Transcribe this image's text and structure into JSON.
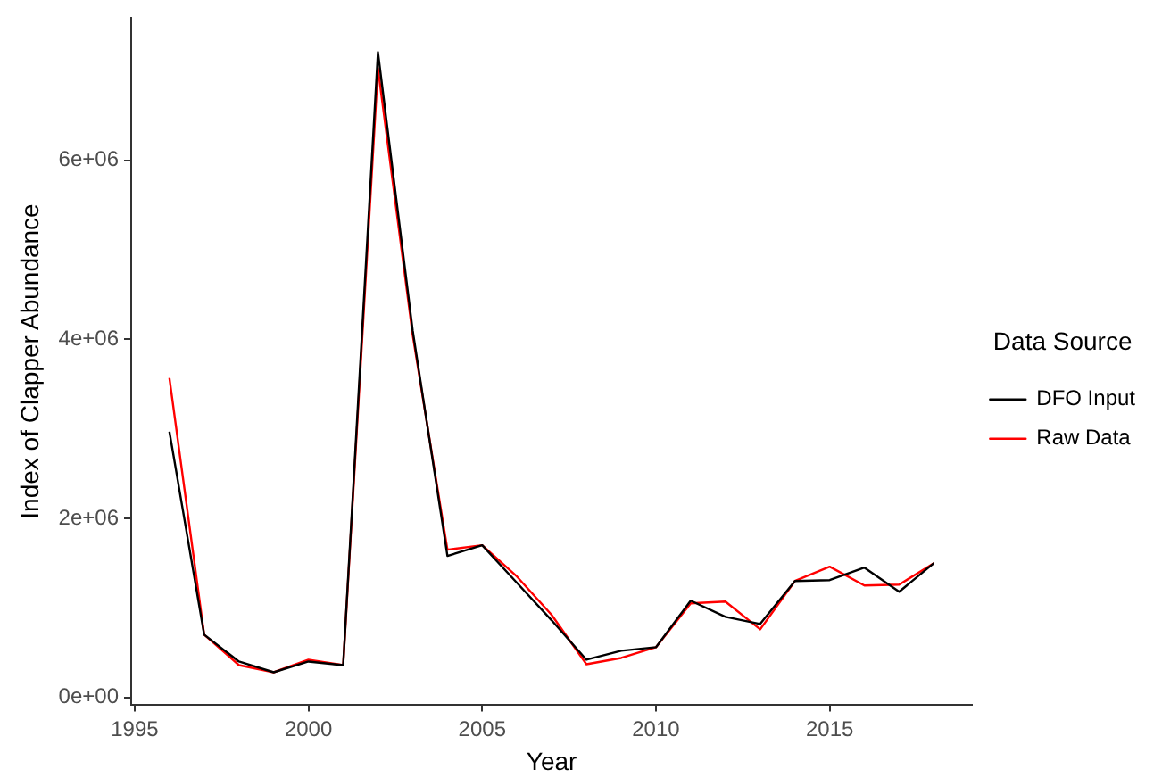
{
  "chart_data": {
    "type": "line",
    "xlabel": "Year",
    "ylabel": "Index of Clapper Abundance",
    "legend_title": "Data Source",
    "legend": "right",
    "grid": false,
    "marker": "none",
    "line_style": "solid",
    "x": [
      1996,
      1997,
      1998,
      1999,
      2000,
      2001,
      2002,
      2003,
      2004,
      2005,
      2006,
      2007,
      2008,
      2009,
      2010,
      2011,
      2012,
      2013,
      2014,
      2015,
      2016,
      2017,
      2018
    ],
    "series": [
      {
        "name": "DFO Input",
        "color": "#000000",
        "values": [
          2970000,
          700000,
          400000,
          280000,
          400000,
          360000,
          7210000,
          4100000,
          1580000,
          1700000,
          1280000,
          860000,
          420000,
          520000,
          560000,
          1080000,
          900000,
          820000,
          1300000,
          1310000,
          1450000,
          1180000,
          1500000
        ]
      },
      {
        "name": "Raw Data",
        "color": "#ff0000",
        "values": [
          3570000,
          700000,
          360000,
          280000,
          420000,
          360000,
          7030000,
          4050000,
          1650000,
          1700000,
          1350000,
          920000,
          370000,
          440000,
          560000,
          1050000,
          1070000,
          760000,
          1300000,
          1460000,
          1250000,
          1260000,
          1500000
        ]
      }
    ],
    "xlim": [
      1994.9,
      2019.1
    ],
    "xticks": [
      1995,
      2000,
      2005,
      2010,
      2015
    ],
    "ylim": [
      -80000,
      7590000
    ],
    "yticks": [
      {
        "value": 0,
        "label": "0e+00"
      },
      {
        "value": 2000000,
        "label": "2e+06"
      },
      {
        "value": 4000000,
        "label": "4e+06"
      },
      {
        "value": 6000000,
        "label": "6e+06"
      }
    ]
  }
}
